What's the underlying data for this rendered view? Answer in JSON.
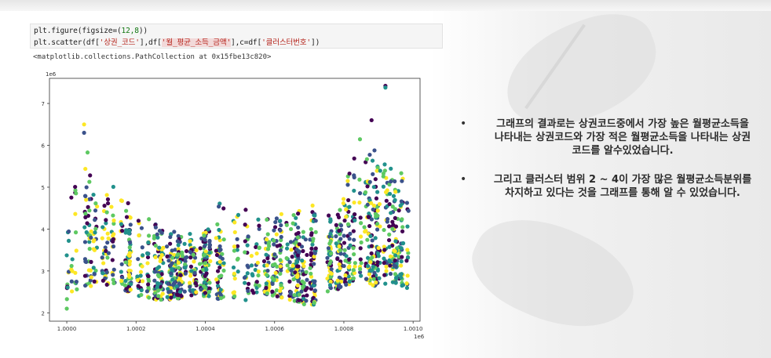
{
  "code_cell": {
    "line1": {
      "pre": "plt.figure(figsize=(",
      "num": "12,8",
      "post": "))"
    },
    "line2": {
      "p1": "plt.scatter(df[",
      "s1": "'상권_코드'",
      "p2": "],df[",
      "s2": "'월_평균_소득_금액'",
      "p3": "],c=df[",
      "s3": "'클러스터번호'",
      "p4": "])"
    }
  },
  "output_text": "<matplotlib.collections.PathCollection at 0x15fbe13c820>",
  "bullets": [
    {
      "symbol": "•",
      "text": "그래프의 결과로는 상권코드중에서 가장 높은 월평균소득을 나타내는 상권코드와 가장 적은 월평균소득을 나타내는 상권코드를 알수있었습니다."
    },
    {
      "symbol": "•",
      "text": "그리고 클러스터 범위 2 ~ 4이 가장 많은 월평균소득분위를 차지하고 있다는 것을 그래프를 통해 알 수 있었습니다."
    }
  ],
  "chart_data": {
    "type": "scatter",
    "title": "",
    "xlabel": "",
    "ylabel": "",
    "x_offset_label": "1e6",
    "y_offset_label": "1e6",
    "xlim": [
      0.99995,
      1.00102
    ],
    "ylim": [
      1.8,
      7.6
    ],
    "x_ticks": [
      1.0,
      1.0002,
      1.0004,
      1.0006,
      1.0008,
      1.001
    ],
    "x_tick_labels": [
      "1.0000",
      "1.0002",
      "1.0004",
      "1.0006",
      "1.0008",
      "1.0010"
    ],
    "y_ticks": [
      2,
      3,
      4,
      5,
      6,
      7
    ],
    "y_tick_labels": [
      "2",
      "3",
      "4",
      "5",
      "6",
      "7"
    ],
    "grid": false,
    "colormap": [
      "#440154",
      "#3b528b",
      "#21918c",
      "#5ec962",
      "#fde725"
    ],
    "x_range": [
      1.0,
      1.00101
    ],
    "notable_points": [
      {
        "x": 1.00092,
        "y": 7.42
      },
      {
        "x": 1.00092,
        "y": 7.38
      },
      {
        "x": 1.00005,
        "y": 6.5
      },
      {
        "x": 1.00005,
        "y": 6.3
      },
      {
        "x": 1.0,
        "y": 2.1
      },
      {
        "x": 1.00088,
        "y": 6.6
      }
    ],
    "envelope": [
      [
        1.0,
        2.3,
        4.9
      ],
      [
        1.00005,
        2.6,
        6.4
      ],
      [
        1.0001,
        2.7,
        5.3
      ],
      [
        1.00015,
        2.6,
        5.8
      ],
      [
        1.0002,
        2.4,
        4.6
      ],
      [
        1.00025,
        2.3,
        4.5
      ],
      [
        1.0003,
        2.3,
        4.1
      ],
      [
        1.00035,
        2.4,
        4.2
      ],
      [
        1.0004,
        2.4,
        4.3
      ],
      [
        1.00045,
        2.3,
        5.1
      ],
      [
        1.0005,
        2.2,
        5.5
      ],
      [
        1.00055,
        2.5,
        4.6
      ],
      [
        1.0006,
        2.4,
        4.4
      ],
      [
        1.00065,
        2.3,
        4.5
      ],
      [
        1.0007,
        2.1,
        5.0
      ],
      [
        1.00075,
        2.5,
        4.3
      ],
      [
        1.0008,
        2.6,
        5.2
      ],
      [
        1.00085,
        2.8,
        6.4
      ],
      [
        1.0009,
        2.6,
        6.0
      ],
      [
        1.00095,
        2.7,
        5.8
      ],
      [
        1.001,
        2.5,
        5.2
      ]
    ]
  }
}
